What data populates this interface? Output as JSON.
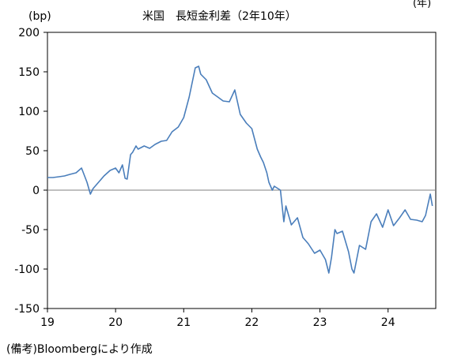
{
  "chart_data": {
    "type": "line",
    "title": "米国　長短金利差（2年10年）",
    "ylabel": "(bp)",
    "corner_mark": "(年)",
    "source_note": "(備考)Bloombergにより作成",
    "x_tick_labels": [
      "19",
      "20",
      "21",
      "22",
      "23",
      "24"
    ],
    "xlim": [
      2019.0,
      2024.7
    ],
    "ylim": [
      -150,
      200
    ],
    "y_ticks": [
      200,
      150,
      100,
      50,
      0,
      -50,
      -100,
      -150
    ],
    "grid": false,
    "legend": "none",
    "line_color": "#4a7ebb",
    "zero_line_color": "#808080",
    "series": [
      {
        "x": [
          2019.0,
          2019.08,
          2019.17,
          2019.25,
          2019.33,
          2019.42,
          2019.5,
          2019.58,
          2019.63,
          2019.67,
          2019.75,
          2019.83,
          2019.92,
          2020.0,
          2020.05,
          2020.1,
          2020.14,
          2020.17,
          2020.22,
          2020.25,
          2020.3,
          2020.33,
          2020.42,
          2020.5,
          2020.58,
          2020.67,
          2020.75,
          2020.83,
          2020.92,
          2021.0,
          2021.08,
          2021.17,
          2021.22,
          2021.25,
          2021.33,
          2021.42,
          2021.5,
          2021.58,
          2021.67,
          2021.75,
          2021.83,
          2021.92,
          2022.0,
          2022.08,
          2022.13,
          2022.17,
          2022.22,
          2022.25,
          2022.3,
          2022.33,
          2022.42,
          2022.47,
          2022.5,
          2022.58,
          2022.67,
          2022.75,
          2022.83,
          2022.92,
          2023.0,
          2023.08,
          2023.13,
          2023.17,
          2023.22,
          2023.25,
          2023.33,
          2023.42,
          2023.47,
          2023.5,
          2023.58,
          2023.67,
          2023.75,
          2023.83,
          2023.92,
          2024.0,
          2024.08,
          2024.17,
          2024.25,
          2024.33,
          2024.42,
          2024.5,
          2024.55,
          2024.58,
          2024.62,
          2024.65
        ],
        "y": [
          16,
          16,
          17,
          18,
          20,
          22,
          28,
          10,
          -5,
          2,
          10,
          18,
          25,
          28,
          22,
          32,
          15,
          14,
          45,
          48,
          56,
          52,
          56,
          53,
          58,
          62,
          63,
          74,
          80,
          92,
          118,
          155,
          157,
          147,
          140,
          123,
          118,
          113,
          112,
          127,
          96,
          85,
          78,
          52,
          42,
          35,
          22,
          10,
          0,
          5,
          0,
          -40,
          -20,
          -44,
          -35,
          -60,
          -68,
          -80,
          -76,
          -88,
          -105,
          -85,
          -50,
          -55,
          -52,
          -78,
          -100,
          -105,
          -70,
          -75,
          -40,
          -30,
          -47,
          -25,
          -45,
          -35,
          -25,
          -37,
          -38,
          -40,
          -32,
          -20,
          -5,
          -20
        ]
      }
    ]
  }
}
